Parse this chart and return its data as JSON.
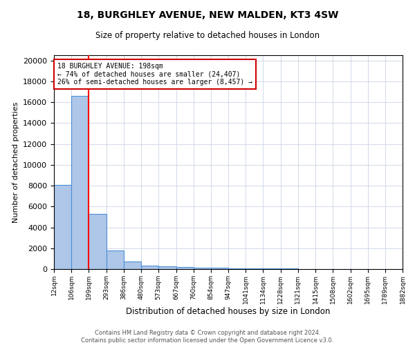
{
  "title": "18, BURGHLEY AVENUE, NEW MALDEN, KT3 4SW",
  "subtitle": "Size of property relative to detached houses in London",
  "xlabel": "Distribution of detached houses by size in London",
  "ylabel": "Number of detached properties",
  "annotation_line1": "18 BURGHLEY AVENUE: 198sqm",
  "annotation_line2": "← 74% of detached houses are smaller (24,407)",
  "annotation_line3": "26% of semi-detached houses are larger (8,457) →",
  "property_bin_index": 2,
  "bins": [
    12,
    106,
    199,
    293,
    386,
    480,
    573,
    667,
    760,
    854,
    947,
    1041,
    1134,
    1228,
    1321,
    1415,
    1508,
    1602,
    1695,
    1789,
    1882
  ],
  "bin_labels": [
    "12sqm",
    "106sqm",
    "199sqm",
    "293sqm",
    "386sqm",
    "480sqm",
    "573sqm",
    "667sqm",
    "760sqm",
    "854sqm",
    "947sqm",
    "1041sqm",
    "1134sqm",
    "1228sqm",
    "1321sqm",
    "1415sqm",
    "1508sqm",
    "1602sqm",
    "1695sqm",
    "1789sqm",
    "1882sqm"
  ],
  "counts": [
    8050,
    16600,
    5300,
    1800,
    700,
    350,
    250,
    200,
    150,
    100,
    80,
    60,
    50,
    40,
    30,
    25,
    20,
    15,
    12,
    10,
    0
  ],
  "bar_color": "#aec6e8",
  "bar_edge_color": "#4a90d9",
  "annotation_box_color": "#ffffff",
  "annotation_box_edge_color": "#cc0000",
  "ylim": [
    0,
    20500
  ],
  "footer_line1": "Contains HM Land Registry data © Crown copyright and database right 2024.",
  "footer_line2": "Contains public sector information licensed under the Open Government Licence v3.0.",
  "background_color": "#ffffff",
  "grid_color": "#d0d8e8"
}
